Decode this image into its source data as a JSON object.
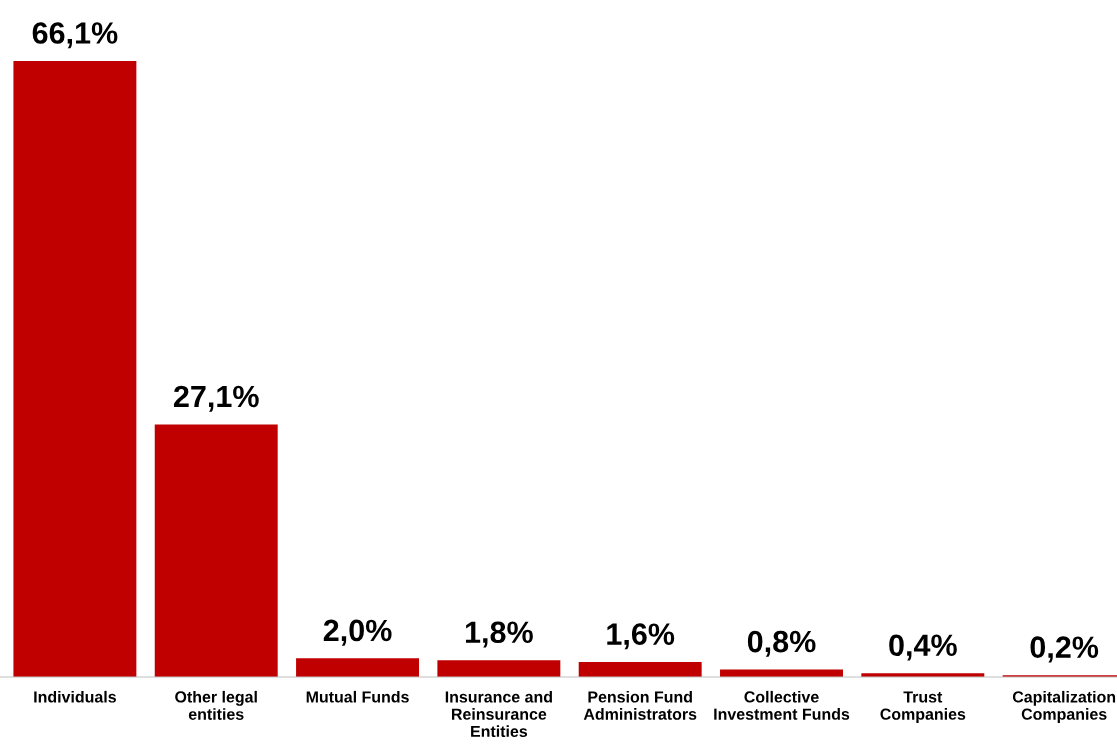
{
  "chart_data": {
    "type": "bar",
    "categories": [
      "Individuals",
      "Other legal\nentities",
      "Mutual Funds",
      "Insurance and\nReinsurance\nEntities",
      "Pension Fund\nAdministrators",
      "Collective\nInvestment Funds",
      "Trust\nCompanies",
      "Capitalization\nCompanies"
    ],
    "values": [
      66.1,
      27.1,
      2.0,
      1.8,
      1.6,
      0.8,
      0.4,
      0.2
    ],
    "value_labels": [
      "66,1%",
      "27,1%",
      "2,0%",
      "1,8%",
      "1,6%",
      "0,8%",
      "0,4%",
      "0,2%"
    ],
    "color": "#c00000",
    "grid": false,
    "legend": false
  }
}
